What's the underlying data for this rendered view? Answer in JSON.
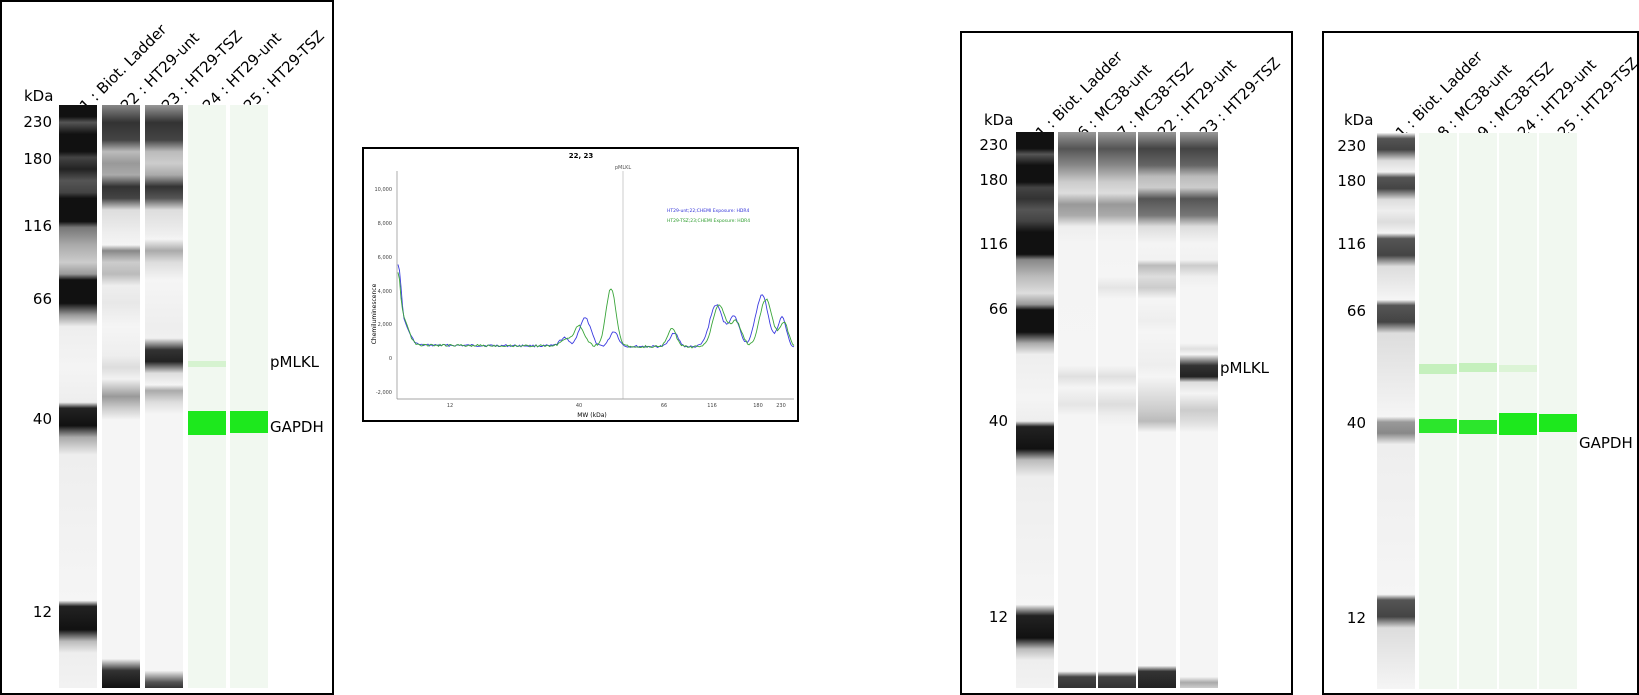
{
  "panels": [
    {
      "id": "panel1",
      "kda_label": "kDa",
      "markers": [
        "230",
        "180",
        "116",
        "66",
        "40",
        "12"
      ],
      "lanes": [
        {
          "label": "1 : Biot. Ladder",
          "type": "ladder"
        },
        {
          "label": "22 : HT29-unt",
          "type": "gray"
        },
        {
          "label": "23 : HT29-TSZ",
          "type": "gray"
        },
        {
          "label": "24 : HT29-unt",
          "type": "green"
        },
        {
          "label": "25 : HT29-TSZ",
          "type": "green"
        }
      ],
      "annotations": [
        "pMLKL",
        "GAPDH"
      ]
    },
    {
      "id": "panel3",
      "kda_label": "kDa",
      "markers": [
        "230",
        "180",
        "116",
        "66",
        "40",
        "12"
      ],
      "lanes": [
        {
          "label": "1 : Biot. Ladder",
          "type": "ladder"
        },
        {
          "label": "6 : MC38-unt",
          "type": "gray"
        },
        {
          "label": "7 : MC38-TSZ",
          "type": "gray"
        },
        {
          "label": "22 : HT29-unt",
          "type": "gray"
        },
        {
          "label": "23 : HT29-TSZ",
          "type": "gray"
        }
      ],
      "annotations": [
        "pMLKL"
      ]
    },
    {
      "id": "panel4",
      "kda_label": "kDa",
      "markers": [
        "230",
        "180",
        "116",
        "66",
        "40",
        "12"
      ],
      "lanes": [
        {
          "label": "1 : Biot. Ladder",
          "type": "ladder"
        },
        {
          "label": "8 : MC38-unt",
          "type": "green"
        },
        {
          "label": "9 : MC38-TSZ",
          "type": "green"
        },
        {
          "label": "24 : HT29-unt",
          "type": "green"
        },
        {
          "label": "25 : HT29-TSZ",
          "type": "green"
        }
      ],
      "annotations": [
        "GAPDH"
      ]
    }
  ],
  "chart": {
    "title": "22, 23",
    "peak_label": "pMLKL",
    "ylabel": "Chemiluminescence",
    "xlabel": "MW (kDa)",
    "yticks": [
      "10,000",
      "8,000",
      "6,000",
      "4,000",
      "2,000",
      "0",
      "-2,000"
    ],
    "xticks": [
      "12",
      "40",
      "66",
      "116",
      "180",
      "230"
    ],
    "legend": [
      {
        "name": "HT29-unt;22;CHEMI Exposure: HDR4",
        "color": "#2f2fd8"
      },
      {
        "name": "HT29-TSZ;23;CHEMI Exposure: HDR4",
        "color": "#2a9a2a"
      }
    ],
    "colors": {
      "series1": "#3b3be0",
      "series2": "#3aa53a",
      "marker": "#999999"
    }
  }
}
